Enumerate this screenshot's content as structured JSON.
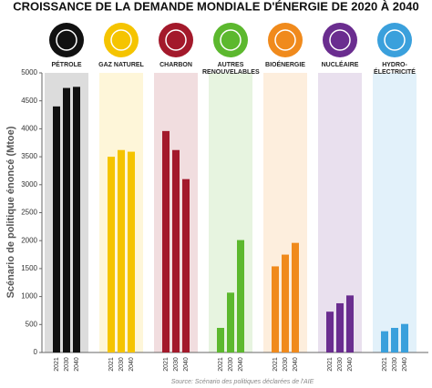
{
  "chart_data": {
    "type": "grouped-bar",
    "title": "CROISSANCE DE LA DEMANDE MONDIALE D'ÉNERGIE DE 2020 À 2040",
    "y_label": "Scénario de politique énoncé (Mtoe)",
    "source": "Source: Scénario des politiques déclarées de l'AIE",
    "years": [
      "2021",
      "2030",
      "2040"
    ],
    "groups": [
      {
        "name": "PÉTROLE",
        "color": "#111111",
        "values": [
          4400,
          4730,
          4750
        ]
      },
      {
        "name": "GAZ NATUREL",
        "color": "#f5c400",
        "values": [
          3500,
          3620,
          3590
        ]
      },
      {
        "name": "CHARBON",
        "color": "#a3192b",
        "values": [
          3960,
          3620,
          3100
        ]
      },
      {
        "name": "AUTRES RENOUVELABLES",
        "color": "#5cb82e",
        "values": [
          440,
          1070,
          2010
        ]
      },
      {
        "name": "BIOÉNERGIE",
        "color": "#f08a1c",
        "values": [
          1540,
          1750,
          1960
        ]
      },
      {
        "name": "NUCLÉAIRE",
        "color": "#6a2d8f",
        "values": [
          730,
          880,
          1020
        ]
      },
      {
        "name": "HYDRO-ÉLECTRICITÉ",
        "color": "#3aa0dc",
        "values": [
          380,
          440,
          510
        ]
      }
    ],
    "ylim": [
      0,
      5000
    ],
    "yticks": [
      0,
      500,
      1000,
      1500,
      2000,
      2500,
      3000,
      3500,
      4000,
      4500,
      5000
    ]
  }
}
